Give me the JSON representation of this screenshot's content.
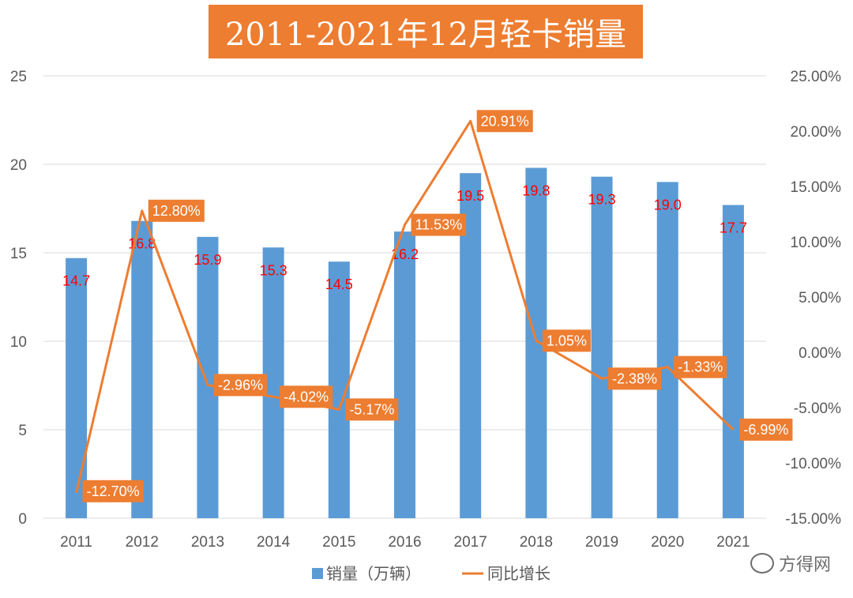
{
  "title": "2011-2021年12月轻卡销量",
  "watermark": "方得网",
  "colors": {
    "bar": "#5B9BD5",
    "line": "#ED7D31",
    "label_box": "#ED7D31",
    "data_label": "#FF0000",
    "grid": "#D9D9D9"
  },
  "chart_data": {
    "type": "bar",
    "categories": [
      "2011",
      "2012",
      "2013",
      "2014",
      "2015",
      "2016",
      "2017",
      "2018",
      "2019",
      "2020",
      "2021"
    ],
    "series": [
      {
        "name": "销量（万辆）",
        "type": "bar",
        "axis": "left",
        "values": [
          14.7,
          16.8,
          15.9,
          15.3,
          14.5,
          16.2,
          19.5,
          19.8,
          19.3,
          19.0,
          17.7
        ],
        "labels": [
          "14.7",
          "16.8",
          "15.9",
          "15.3",
          "14.5",
          "16.2",
          "19.5",
          "19.8",
          "19.3",
          "19.0",
          "17.7"
        ]
      },
      {
        "name": "同比增长",
        "type": "line",
        "axis": "right",
        "values": [
          -12.7,
          12.8,
          -2.96,
          -4.02,
          -5.17,
          11.53,
          20.91,
          1.05,
          -2.38,
          -1.33,
          -6.99
        ],
        "labels": [
          "-12.70%",
          "12.80%",
          "-2.96%",
          "-4.02%",
          "-5.17%",
          "11.53%",
          "20.91%",
          "1.05%",
          "-2.38%",
          "-1.33%",
          "-6.99%"
        ]
      }
    ],
    "y_left": {
      "min": 0,
      "max": 25,
      "ticks": [
        "0",
        "5",
        "10",
        "15",
        "20",
        "25"
      ]
    },
    "y_right": {
      "min": -15,
      "max": 25,
      "ticks": [
        "-15.00%",
        "-10.00%",
        "-5.00%",
        "0.00%",
        "5.00%",
        "10.00%",
        "15.00%",
        "20.00%",
        "25.00%"
      ]
    },
    "grid": true,
    "legend_position": "bottom"
  }
}
